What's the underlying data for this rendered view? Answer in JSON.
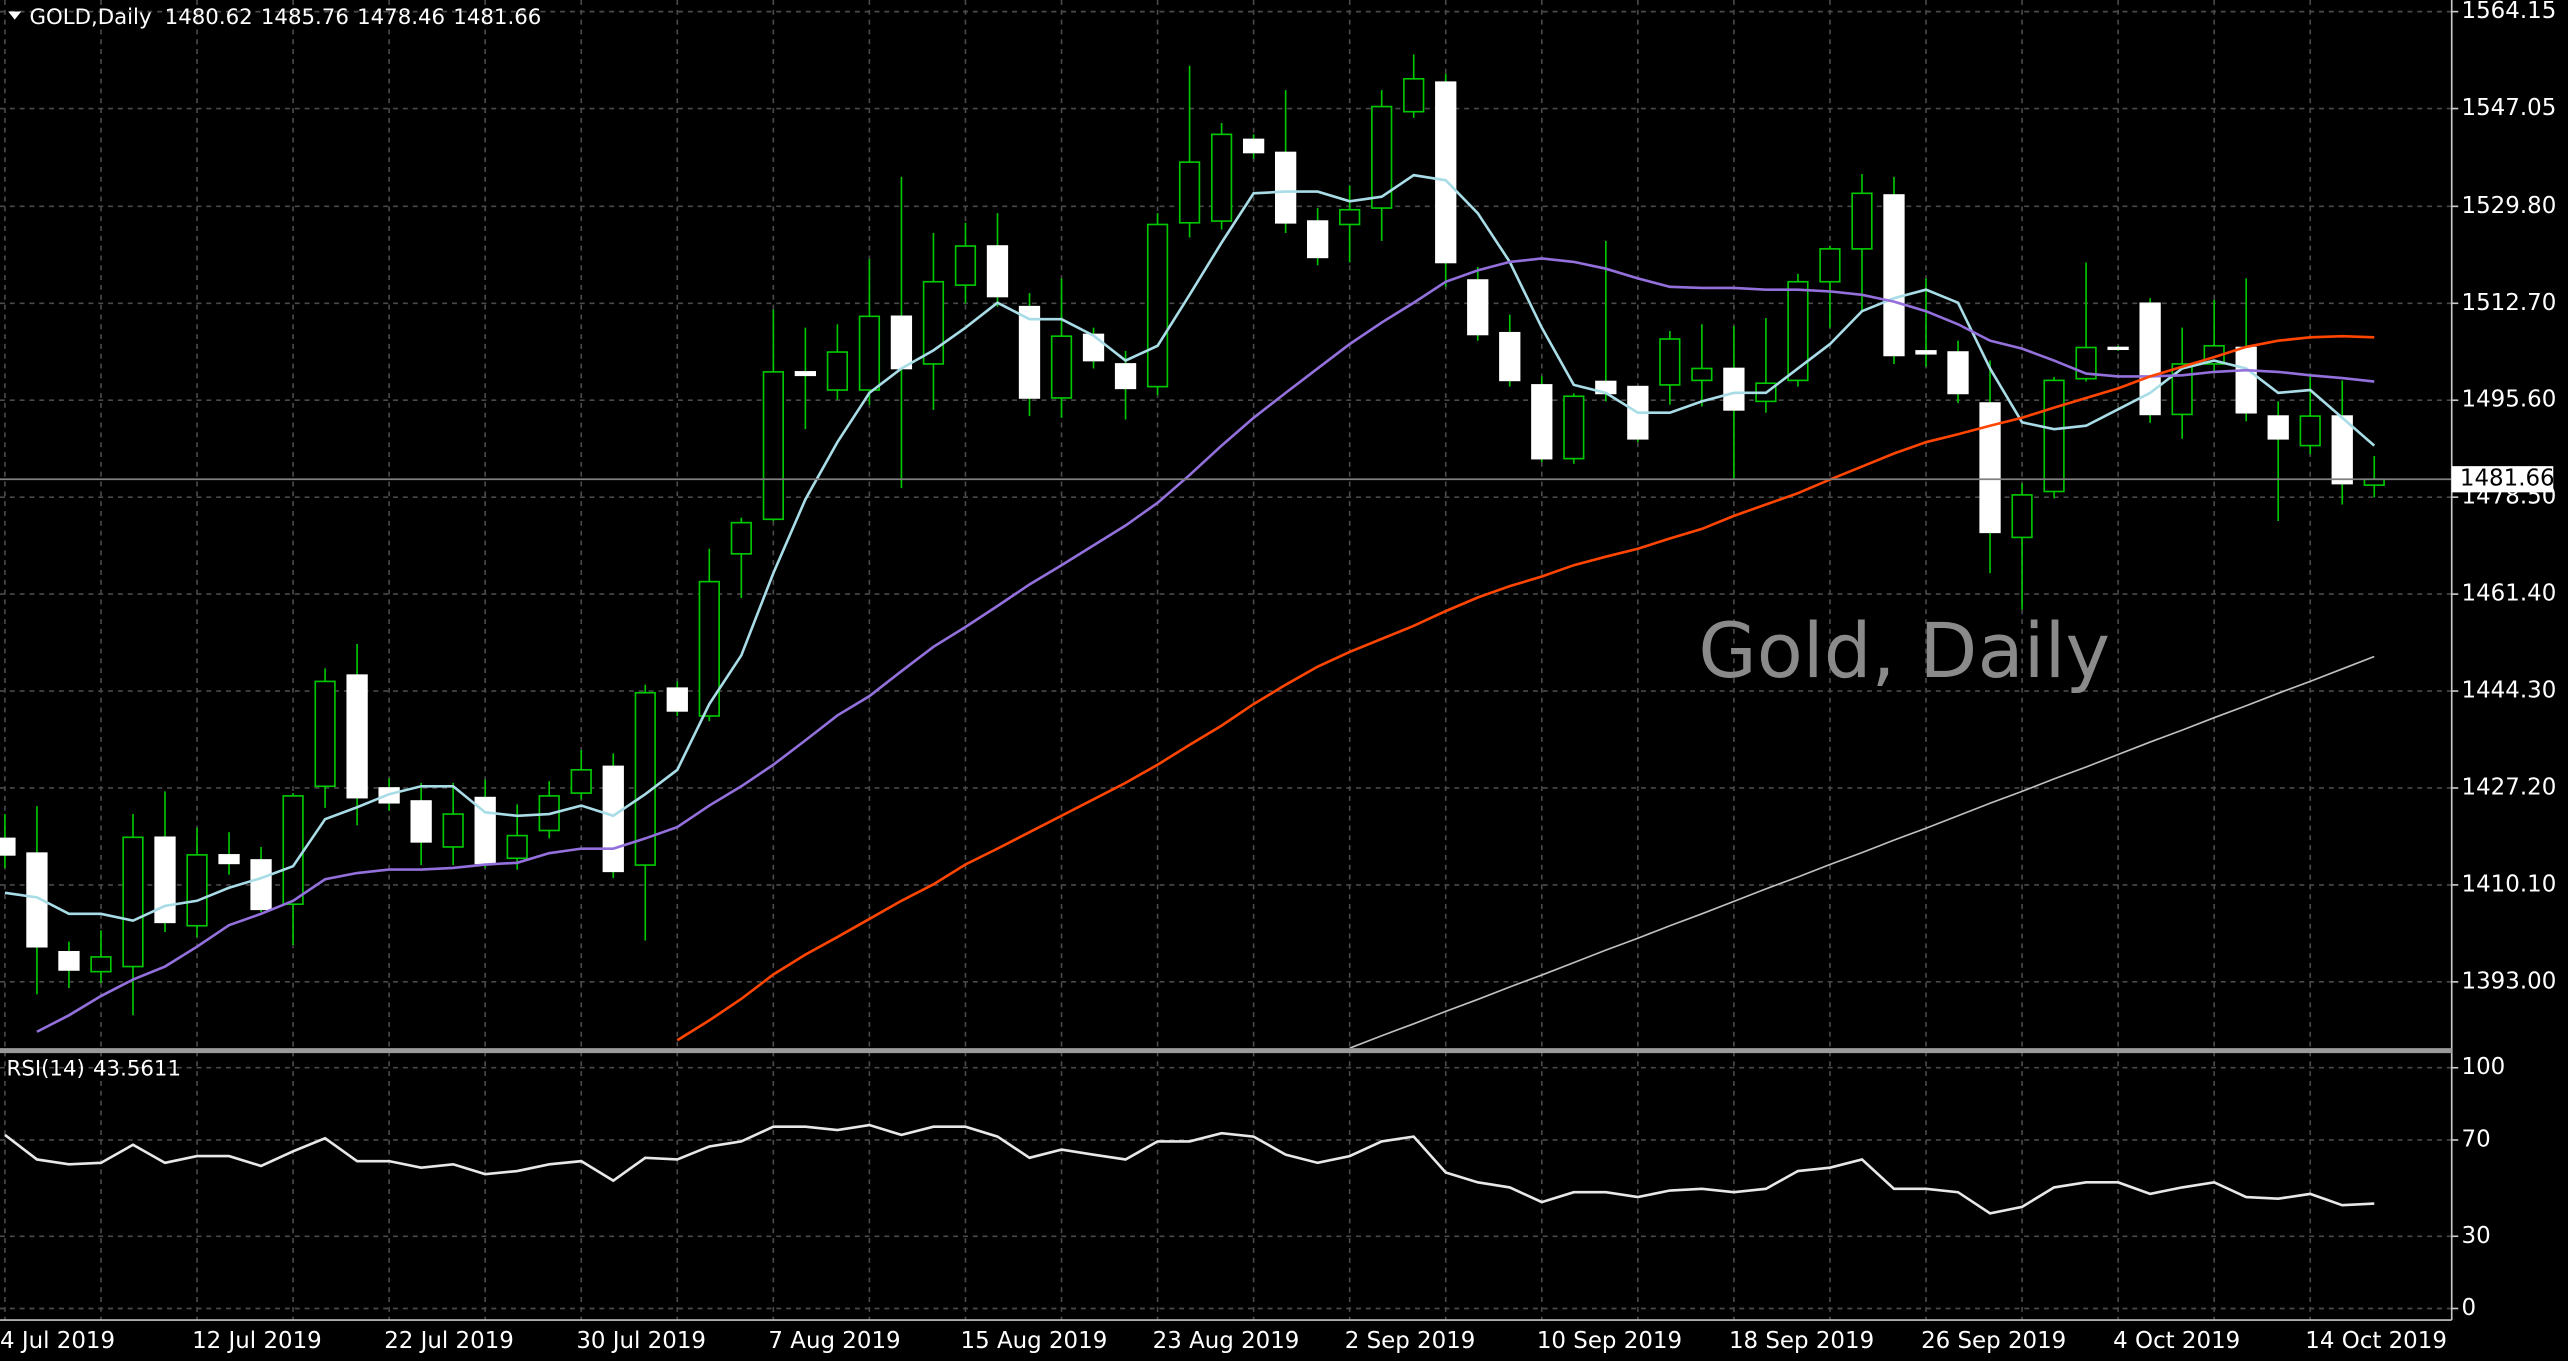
{
  "chart_data": [
    {
      "type": "candlestick",
      "symbol": "GOLD,Daily",
      "watermark": "Gold, Daily",
      "categories": [
        "4 Jul 2019",
        null,
        null,
        null,
        null,
        null,
        "12 Jul 2019",
        null,
        null,
        null,
        null,
        null,
        "22 Jul 2019",
        null,
        null,
        null,
        null,
        null,
        "30 Jul 2019",
        null,
        null,
        null,
        null,
        null,
        "7 Aug 2019",
        null,
        null,
        null,
        null,
        null,
        "15 Aug 2019",
        null,
        null,
        null,
        null,
        null,
        "23 Aug 2019",
        null,
        null,
        null,
        null,
        null,
        "2 Sep 2019",
        null,
        null,
        null,
        null,
        null,
        "10 Sep 2019",
        null,
        null,
        null,
        null,
        null,
        "18 Sep 2019",
        null,
        null,
        null,
        null,
        null,
        "26 Sep 2019",
        null,
        null,
        null,
        null,
        null,
        "4 Oct 2019",
        null,
        null,
        null,
        null,
        null,
        "14 Oct 2019",
        null,
        null
      ],
      "open": [
        1418.3,
        1415.7,
        1398.3,
        1394.8,
        1395.7,
        1418.5,
        1402.9,
        1415.4,
        1414.5,
        1406.7,
        1427.5,
        1447.1,
        1427.2,
        1424.9,
        1416.8,
        1425.5,
        1414.8,
        1419.7,
        1426.3,
        1431.0,
        1413.6,
        1444.8,
        1439.9,
        1468.5,
        1474.6,
        1500.6,
        1497.4,
        1497.4,
        1510.4,
        1502.0,
        1515.9,
        1522.8,
        1512.1,
        1496.0,
        1507.2,
        1502.0,
        1498.0,
        1526.9,
        1527.2,
        1541.6,
        1539.3,
        1527.2,
        1526.6,
        1529.5,
        1546.5,
        1551.7,
        1516.8,
        1507.5,
        1498.3,
        1485.3,
        1498.9,
        1498.0,
        1498.3,
        1499.1,
        1501.2,
        1495.4,
        1499.1,
        1516.5,
        1522.3,
        1531.8,
        1504.3,
        1504.1,
        1495.1,
        1471.4,
        1479.5,
        1499.4,
        1504.9,
        1512.7,
        1493.1,
        1502.0,
        1504.9,
        1492.8,
        1487.6,
        1492.8,
        1480.62
      ],
      "high": [
        1422.6,
        1424.0,
        1400.1,
        1402.1,
        1422.6,
        1426.6,
        1420.2,
        1419.4,
        1416.8,
        1426.3,
        1448.3,
        1452.6,
        1428.9,
        1428.1,
        1428.1,
        1428.7,
        1424.3,
        1428.4,
        1433.9,
        1433.3,
        1445.4,
        1446.0,
        1469.4,
        1474.9,
        1511.6,
        1508.4,
        1509.0,
        1520.5,
        1535.0,
        1525.1,
        1526.9,
        1528.6,
        1514.5,
        1517.1,
        1508.4,
        1504.3,
        1528.6,
        1554.6,
        1544.5,
        1542.5,
        1550.3,
        1529.5,
        1533.5,
        1550.3,
        1556.6,
        1553.2,
        1519.1,
        1510.7,
        1499.8,
        1496.8,
        1523.7,
        1498.0,
        1507.8,
        1509.0,
        1508.7,
        1510.1,
        1517.9,
        1522.8,
        1535.5,
        1535.0,
        1517.1,
        1506.1,
        1502.6,
        1480.9,
        1499.7,
        1519.9,
        1505.2,
        1513.6,
        1508.4,
        1513.3,
        1517.1,
        1495.4,
        1500.3,
        1499.1,
        1485.76
      ],
      "low": [
        1413.1,
        1390.8,
        1391.9,
        1392.8,
        1387.1,
        1401.8,
        1400.9,
        1411.9,
        1405.3,
        1399.5,
        1423.7,
        1420.6,
        1423.2,
        1413.6,
        1413.6,
        1413.1,
        1412.8,
        1418.3,
        1425.2,
        1411.3,
        1400.3,
        1439.9,
        1439.0,
        1460.7,
        1474.3,
        1490.5,
        1495.7,
        1494.8,
        1480.1,
        1493.9,
        1512.7,
        1512.1,
        1492.8,
        1492.5,
        1501.2,
        1492.2,
        1496.5,
        1524.3,
        1525.7,
        1538.2,
        1525.1,
        1519.4,
        1519.9,
        1523.7,
        1545.4,
        1515.6,
        1506.1,
        1498.0,
        1484.7,
        1484.4,
        1495.4,
        1488.2,
        1494.8,
        1494.5,
        1481.8,
        1493.4,
        1498.0,
        1508.4,
        1511.3,
        1502.0,
        1501.5,
        1495.1,
        1465.1,
        1458.7,
        1478.3,
        1498.9,
        1504.3,
        1491.6,
        1488.8,
        1500.6,
        1491.9,
        1474.3,
        1486.1,
        1477.2,
        1478.46
      ],
      "close": [
        1415.4,
        1399.2,
        1395.1,
        1397.4,
        1418.5,
        1403.5,
        1415.4,
        1413.9,
        1405.8,
        1425.8,
        1446.0,
        1425.5,
        1424.6,
        1417.7,
        1422.6,
        1413.9,
        1418.8,
        1425.8,
        1430.4,
        1412.5,
        1444.0,
        1440.8,
        1463.6,
        1474.0,
        1500.6,
        1500.0,
        1504.1,
        1510.4,
        1501.2,
        1516.5,
        1522.8,
        1513.9,
        1496.0,
        1506.9,
        1502.6,
        1497.7,
        1526.6,
        1537.6,
        1542.5,
        1539.3,
        1526.9,
        1520.8,
        1529.2,
        1547.4,
        1552.3,
        1519.9,
        1507.2,
        1499.1,
        1485.3,
        1496.3,
        1496.8,
        1488.8,
        1506.4,
        1501.2,
        1493.9,
        1498.6,
        1516.5,
        1522.3,
        1532.1,
        1503.5,
        1503.8,
        1496.8,
        1472.3,
        1478.9,
        1499.1,
        1504.9,
        1504.6,
        1493.1,
        1502.0,
        1505.2,
        1493.4,
        1488.8,
        1492.8,
        1480.9,
        1481.66
      ],
      "up_color": "#00c800",
      "down_color": "#ffffff",
      "series": [
        {
          "color": "#a8dce6",
          "values": [
            1408.7,
            1407.9,
            1405.0,
            1405.0,
            1403.8,
            1406.4,
            1407.3,
            1409.6,
            1411.3,
            1413.4,
            1421.7,
            1423.8,
            1426.1,
            1427.5,
            1427.5,
            1422.9,
            1422.3,
            1422.6,
            1424.1,
            1422.3,
            1426.1,
            1430.4,
            1442.0,
            1450.6,
            1465.1,
            1478.1,
            1488.2,
            1496.9,
            1501.2,
            1504.4,
            1508.4,
            1512.8,
            1509.9,
            1509.9,
            1507.0,
            1502.6,
            1505.2,
            1514.2,
            1523.4,
            1532.1,
            1532.4,
            1532.4,
            1530.7,
            1531.5,
            1535.3,
            1534.4,
            1528.6,
            1520.0,
            1508.4,
            1498.3,
            1496.9,
            1493.4,
            1493.4,
            1495.4,
            1496.9,
            1496.9,
            1501.2,
            1505.5,
            1511.3,
            1513.6,
            1515.1,
            1512.8,
            1501.2,
            1491.7,
            1490.5,
            1491.1,
            1494.0,
            1496.9,
            1501.2,
            1502.6,
            1501.2,
            1496.9,
            1497.4,
            1492.5,
            1487.6
          ]
        },
        {
          "color": "#9370db",
          "values": [
            null,
            1384.2,
            1387.1,
            1390.5,
            1393.4,
            1395.7,
            1399.2,
            1403.0,
            1405.0,
            1407.3,
            1411.1,
            1412.2,
            1412.8,
            1412.8,
            1413.1,
            1413.7,
            1414.0,
            1415.7,
            1416.5,
            1416.5,
            1418.3,
            1420.3,
            1424.1,
            1427.5,
            1431.3,
            1435.6,
            1440.0,
            1443.4,
            1447.8,
            1452.1,
            1455.6,
            1459.3,
            1463.1,
            1466.5,
            1470.0,
            1473.5,
            1477.5,
            1482.4,
            1487.6,
            1492.5,
            1496.9,
            1501.2,
            1505.5,
            1509.3,
            1512.8,
            1516.5,
            1518.5,
            1520.0,
            1520.6,
            1520.0,
            1518.8,
            1517.1,
            1515.6,
            1515.4,
            1515.4,
            1515.1,
            1515.1,
            1514.8,
            1514.2,
            1513.0,
            1511.3,
            1509.0,
            1506.1,
            1504.7,
            1502.6,
            1500.3,
            1499.8,
            1499.8,
            1500.0,
            1500.6,
            1500.9,
            1500.6,
            1500.0,
            1499.5,
            1498.9
          ]
        },
        {
          "color": "#ff4500",
          "values": [
            null,
            null,
            null,
            null,
            null,
            null,
            null,
            null,
            null,
            null,
            null,
            null,
            null,
            null,
            null,
            null,
            null,
            null,
            null,
            null,
            null,
            1382.7,
            1386.2,
            1390.0,
            1394.3,
            1397.8,
            1400.9,
            1404.1,
            1407.3,
            1410.2,
            1413.7,
            1416.5,
            1419.4,
            1422.3,
            1425.2,
            1428.1,
            1431.3,
            1434.8,
            1438.2,
            1442.0,
            1445.4,
            1448.6,
            1451.2,
            1453.5,
            1455.8,
            1458.4,
            1460.8,
            1462.8,
            1464.5,
            1466.5,
            1468.0,
            1469.4,
            1471.2,
            1472.9,
            1475.2,
            1477.2,
            1479.2,
            1481.6,
            1483.9,
            1486.2,
            1488.2,
            1489.6,
            1491.1,
            1492.5,
            1494.3,
            1496.0,
            1497.7,
            1499.8,
            1501.5,
            1503.2,
            1505.0,
            1506.1,
            1506.7,
            1506.9,
            1506.7
          ]
        },
        {
          "color": "#c0c0c0",
          "values": [
            null,
            null,
            null,
            null,
            null,
            null,
            null,
            null,
            null,
            null,
            null,
            null,
            null,
            null,
            null,
            null,
            null,
            null,
            null,
            null,
            null,
            null,
            null,
            null,
            null,
            null,
            null,
            null,
            null,
            null,
            null,
            null,
            null,
            null,
            null,
            null,
            null,
            null,
            null,
            null,
            null,
            null,
            1381.3,
            1383.5,
            1385.6,
            1387.8,
            1389.9,
            1392.1,
            1394.2,
            1396.4,
            1398.6,
            1400.7,
            1402.9,
            1405.0,
            1407.2,
            1409.4,
            1411.5,
            1413.7,
            1415.8,
            1418.0,
            1420.1,
            1422.3,
            1424.5,
            1426.6,
            1428.8,
            1430.9,
            1433.1,
            1435.3,
            1437.4,
            1439.6,
            1441.7,
            1443.9,
            1446.0,
            1448.2,
            1450.4
          ]
        }
      ],
      "ylim": [
        1381.3,
        1566.2
      ],
      "yticks": [
        1564.15,
        1547.05,
        {
          "value": 1529.8,
          "label": "1529.80"
        },
        {
          "value": 1512.7,
          "label": "1512.70"
        },
        {
          "value": 1495.6,
          "label": "1495.60"
        },
        {
          "value": 1478.5,
          "label": "1478.50"
        },
        {
          "value": 1461.4,
          "label": "1461.40"
        },
        {
          "value": 1444.3,
          "label": "1444.30"
        },
        {
          "value": 1427.2,
          "label": "1427.20"
        },
        {
          "value": 1410.1,
          "label": "1410.10"
        },
        {
          "value": 1393,
          "label": "1393.00"
        }
      ],
      "grid": true
    },
    {
      "type": "line",
      "title": "RSI(14)",
      "series": [
        {
          "color": "#e8e8e8",
          "values": [
            72.1,
            61.9,
            59.9,
            60.5,
            68.0,
            60.5,
            63.3,
            63.3,
            59.2,
            65.3,
            70.7,
            61.2,
            61.2,
            58.5,
            59.9,
            55.8,
            57.1,
            59.9,
            61.2,
            53.1,
            62.6,
            61.9,
            67.3,
            69.4,
            75.5,
            75.5,
            74.1,
            76.2,
            72.1,
            75.5,
            75.5,
            71.4,
            62.6,
            66.0,
            63.9,
            61.9,
            69.4,
            69.4,
            72.8,
            71.4,
            63.9,
            60.5,
            63.3,
            69.4,
            71.4,
            56.5,
            52.4,
            50.3,
            44.2,
            48.3,
            48.3,
            46.3,
            49.0,
            49.7,
            48.3,
            49.7,
            57.1,
            58.5,
            61.9,
            49.7,
            49.7,
            48.3,
            39.5,
            42.2,
            50.3,
            52.4,
            52.4,
            47.6,
            50.3,
            52.4,
            46.3,
            45.6,
            47.6,
            42.9,
            43.5611
          ]
        }
      ],
      "ylim": [
        -4.8,
        105.4
      ],
      "yticks": [
        0,
        30,
        70,
        100
      ],
      "grid": true
    }
  ]
}
